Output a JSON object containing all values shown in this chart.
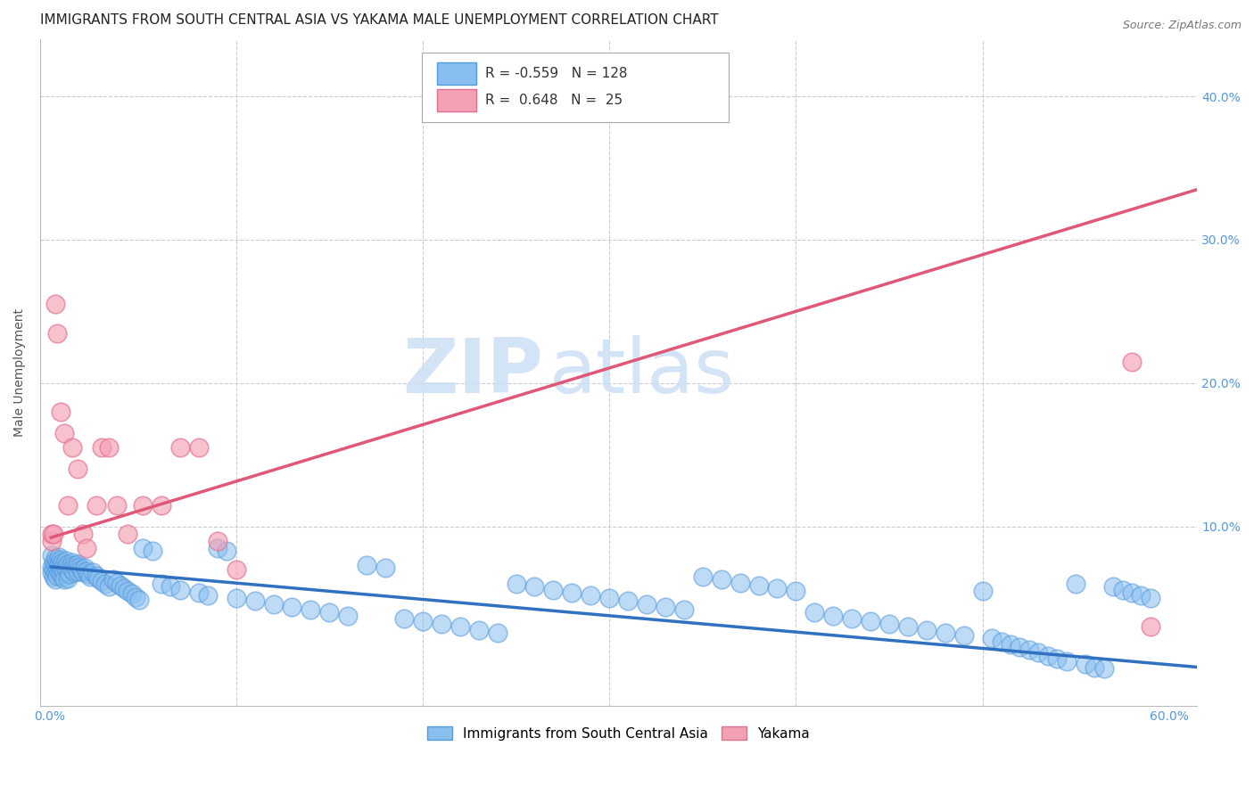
{
  "title": "IMMIGRANTS FROM SOUTH CENTRAL ASIA VS YAKAMA MALE UNEMPLOYMENT CORRELATION CHART",
  "source": "Source: ZipAtlas.com",
  "ylabel": "Male Unemployment",
  "watermark_zip": "ZIP",
  "watermark_atlas": "atlas",
  "xlim": [
    -0.005,
    0.615
  ],
  "ylim": [
    -0.025,
    0.44
  ],
  "yticks_right": [
    0.1,
    0.2,
    0.3,
    0.4
  ],
  "ytick_labels_right": [
    "10.0%",
    "20.0%",
    "30.0%",
    "40.0%"
  ],
  "blue_R": -0.559,
  "blue_N": 128,
  "pink_R": 0.648,
  "pink_N": 25,
  "blue_color": "#89bfef",
  "pink_color": "#f4a0b5",
  "blue_edge_color": "#5599dd",
  "pink_edge_color": "#e07090",
  "blue_line_color": "#3070c0",
  "pink_line_color": "#e05878",
  "legend_label_blue": "Immigrants from South Central Asia",
  "legend_label_pink": "Yakama",
  "title_fontsize": 11,
  "axis_label_fontsize": 10,
  "tick_fontsize": 10,
  "legend_fontsize": 11,
  "blue_trend_x": [
    0.0,
    0.615
  ],
  "blue_trend_y": [
    0.072,
    0.002
  ],
  "pink_trend_x": [
    0.0,
    0.615
  ],
  "pink_trend_y": [
    0.092,
    0.335
  ],
  "blue_scatter_x": [
    0.001,
    0.001,
    0.001,
    0.002,
    0.002,
    0.002,
    0.003,
    0.003,
    0.003,
    0.003,
    0.004,
    0.004,
    0.004,
    0.005,
    0.005,
    0.005,
    0.006,
    0.006,
    0.006,
    0.007,
    0.007,
    0.007,
    0.008,
    0.008,
    0.008,
    0.009,
    0.009,
    0.01,
    0.01,
    0.01,
    0.011,
    0.011,
    0.012,
    0.012,
    0.013,
    0.013,
    0.014,
    0.015,
    0.015,
    0.016,
    0.017,
    0.018,
    0.019,
    0.02,
    0.021,
    0.022,
    0.023,
    0.025,
    0.026,
    0.028,
    0.03,
    0.032,
    0.034,
    0.036,
    0.038,
    0.04,
    0.042,
    0.044,
    0.046,
    0.048,
    0.05,
    0.055,
    0.06,
    0.065,
    0.07,
    0.08,
    0.085,
    0.09,
    0.095,
    0.1,
    0.11,
    0.12,
    0.13,
    0.14,
    0.15,
    0.16,
    0.17,
    0.18,
    0.19,
    0.2,
    0.21,
    0.22,
    0.23,
    0.24,
    0.25,
    0.26,
    0.27,
    0.28,
    0.29,
    0.3,
    0.31,
    0.32,
    0.33,
    0.34,
    0.35,
    0.36,
    0.37,
    0.38,
    0.39,
    0.4,
    0.41,
    0.42,
    0.43,
    0.44,
    0.45,
    0.46,
    0.47,
    0.48,
    0.49,
    0.5,
    0.505,
    0.51,
    0.515,
    0.52,
    0.525,
    0.53,
    0.535,
    0.54,
    0.545,
    0.55,
    0.555,
    0.56,
    0.565,
    0.57,
    0.575,
    0.58,
    0.585,
    0.59
  ],
  "blue_scatter_y": [
    0.072,
    0.068,
    0.08,
    0.075,
    0.07,
    0.065,
    0.078,
    0.073,
    0.068,
    0.063,
    0.076,
    0.071,
    0.066,
    0.079,
    0.074,
    0.069,
    0.077,
    0.072,
    0.067,
    0.075,
    0.07,
    0.065,
    0.073,
    0.068,
    0.063,
    0.076,
    0.071,
    0.074,
    0.069,
    0.064,
    0.072,
    0.067,
    0.075,
    0.07,
    0.073,
    0.068,
    0.071,
    0.074,
    0.069,
    0.072,
    0.07,
    0.068,
    0.071,
    0.069,
    0.067,
    0.065,
    0.068,
    0.066,
    0.064,
    0.062,
    0.06,
    0.058,
    0.063,
    0.061,
    0.059,
    0.057,
    0.055,
    0.053,
    0.051,
    0.049,
    0.085,
    0.083,
    0.06,
    0.058,
    0.056,
    0.054,
    0.052,
    0.085,
    0.083,
    0.05,
    0.048,
    0.046,
    0.044,
    0.042,
    0.04,
    0.038,
    0.073,
    0.071,
    0.036,
    0.034,
    0.032,
    0.03,
    0.028,
    0.026,
    0.06,
    0.058,
    0.056,
    0.054,
    0.052,
    0.05,
    0.048,
    0.046,
    0.044,
    0.042,
    0.065,
    0.063,
    0.061,
    0.059,
    0.057,
    0.055,
    0.04,
    0.038,
    0.036,
    0.034,
    0.032,
    0.03,
    0.028,
    0.026,
    0.024,
    0.055,
    0.022,
    0.02,
    0.018,
    0.016,
    0.014,
    0.012,
    0.01,
    0.008,
    0.006,
    0.06,
    0.004,
    0.002,
    0.001,
    0.058,
    0.056,
    0.054,
    0.052,
    0.05
  ],
  "pink_scatter_x": [
    0.001,
    0.001,
    0.002,
    0.003,
    0.004,
    0.006,
    0.008,
    0.01,
    0.012,
    0.015,
    0.018,
    0.02,
    0.025,
    0.028,
    0.032,
    0.036,
    0.042,
    0.05,
    0.06,
    0.07,
    0.08,
    0.09,
    0.1,
    0.58,
    0.59
  ],
  "pink_scatter_y": [
    0.09,
    0.095,
    0.095,
    0.255,
    0.235,
    0.18,
    0.165,
    0.115,
    0.155,
    0.14,
    0.095,
    0.085,
    0.115,
    0.155,
    0.155,
    0.115,
    0.095,
    0.115,
    0.115,
    0.155,
    0.155,
    0.09,
    0.07,
    0.215,
    0.03
  ]
}
